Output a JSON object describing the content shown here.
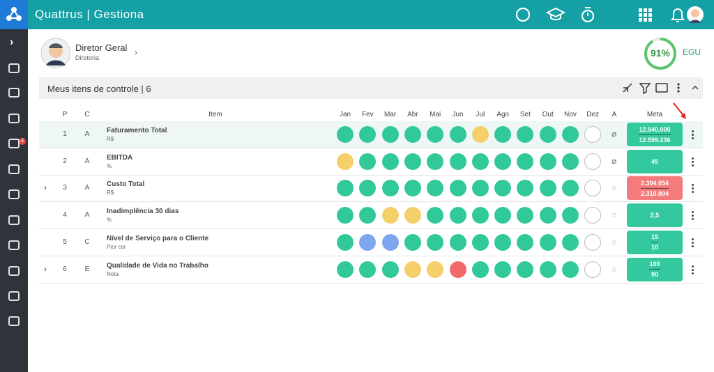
{
  "app": {
    "title": "Quattrus | Gestiona"
  },
  "sidebar": {
    "badge": "3"
  },
  "user": {
    "name": "Diretor Geral",
    "role": "Diretoria"
  },
  "gauge": {
    "value": 91,
    "label": "91%",
    "name": "EGU"
  },
  "panel": {
    "title": "Meus itens de controle | 6"
  },
  "table": {
    "headers": {
      "p": "P",
      "c": "C",
      "item": "Item",
      "months": [
        "Jan",
        "Fev",
        "Mar",
        "Abr",
        "Mai",
        "Jun",
        "Jul",
        "Ago",
        "Set",
        "Out",
        "Nov",
        "Dez"
      ],
      "a": "A",
      "meta": "Meta"
    },
    "rows": [
      {
        "p": 1,
        "c": "A",
        "name": "Faturamento Total",
        "unit": "R$",
        "expandable": false,
        "attachment": true,
        "status": [
          "green",
          "green",
          "green",
          "green",
          "green",
          "green",
          "yellow",
          "green",
          "green",
          "green",
          "green",
          "none"
        ],
        "meta": [
          "12.540.000",
          "12.599.236"
        ],
        "meta_color": "green"
      },
      {
        "p": 2,
        "c": "A",
        "name": "EBITDA",
        "unit": "%",
        "expandable": false,
        "attachment": true,
        "status": [
          "yellow",
          "green",
          "green",
          "green",
          "green",
          "green",
          "green",
          "green",
          "green",
          "green",
          "green",
          "none"
        ],
        "meta": [
          "45"
        ],
        "meta_color": "green"
      },
      {
        "p": 3,
        "c": "A",
        "name": "Custo Total",
        "unit": "R$",
        "expandable": true,
        "attachment": false,
        "status": [
          "green",
          "green",
          "green",
          "green",
          "green",
          "green",
          "green",
          "green",
          "green",
          "green",
          "green",
          "none"
        ],
        "meta": [
          "2.304.054",
          "2.310.804"
        ],
        "meta_color": "red"
      },
      {
        "p": 4,
        "c": "A",
        "name": "Inadimplência 30 dias",
        "unit": "%",
        "expandable": false,
        "attachment": false,
        "status": [
          "green",
          "green",
          "yellow",
          "yellow",
          "green",
          "green",
          "green",
          "green",
          "green",
          "green",
          "green",
          "none"
        ],
        "meta": [
          "2,5"
        ],
        "meta_color": "green"
      },
      {
        "p": 5,
        "c": "C",
        "name": "Nível de Serviço para o Cliente",
        "unit": "Pior cor",
        "expandable": false,
        "attachment": false,
        "status": [
          "green",
          "blue",
          "blue",
          "green",
          "green",
          "green",
          "green",
          "green",
          "green",
          "green",
          "green",
          "none"
        ],
        "meta": [
          "15",
          "10"
        ],
        "meta_color": "green"
      },
      {
        "p": 6,
        "c": "E",
        "name": "Qualidade de Vida no Trabalho",
        "unit": "Nota",
        "expandable": true,
        "attachment": false,
        "status": [
          "green",
          "green",
          "green",
          "yellow",
          "yellow",
          "red",
          "green",
          "green",
          "green",
          "green",
          "green",
          "none"
        ],
        "meta": [
          "100",
          "90"
        ],
        "meta_color": "green"
      }
    ]
  }
}
